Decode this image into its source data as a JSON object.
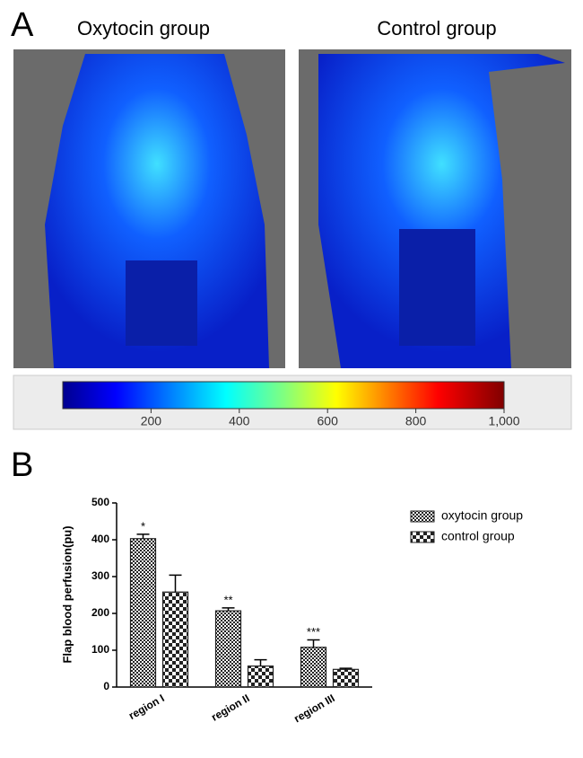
{
  "panel_a": {
    "label": "A",
    "images": [
      "Oxytocin group",
      "Control group"
    ],
    "colorbar": {
      "lim": [
        0,
        1000
      ],
      "ticks": [
        200,
        400,
        600,
        800,
        {
          "value": 1000,
          "label": "1,000"
        }
      ]
    }
  },
  "panel_b": {
    "label": "B"
  },
  "chart_data": {
    "type": "bar",
    "ylabel": "Flap blood perfusion(pu)",
    "categories": [
      "region I",
      "region II",
      "region III"
    ],
    "series": [
      {
        "name": "oxytocin group",
        "color": "#222222",
        "pattern": "fine",
        "values": [
          403,
          207,
          108
        ],
        "errors": [
          12,
          8,
          20
        ],
        "value_labels": [
          "*",
          "**",
          "***"
        ]
      },
      {
        "name": "control group",
        "color": "#222222",
        "pattern": "coarse",
        "values": [
          258,
          57,
          48
        ],
        "errors": [
          46,
          17,
          3
        ]
      }
    ],
    "ylim": [
      0,
      500
    ],
    "yticks": [
      0,
      100,
      200,
      300,
      400,
      500
    ],
    "legend": "upper right"
  }
}
